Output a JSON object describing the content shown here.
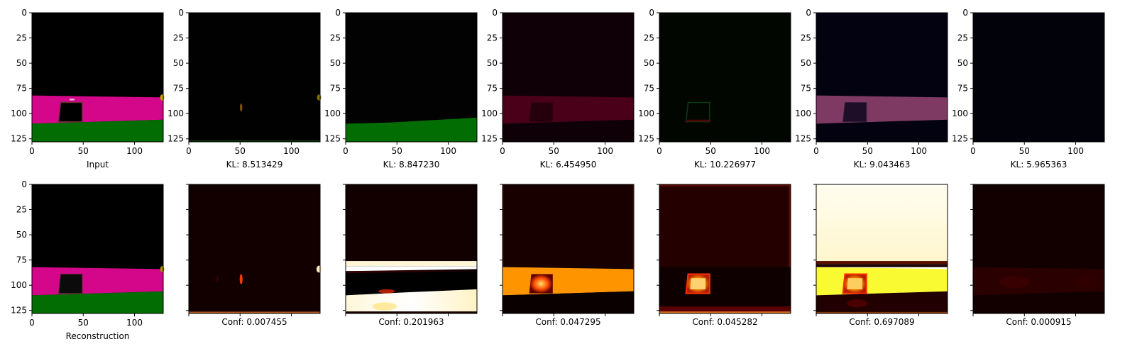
{
  "chart_data": {
    "type": "image-grid",
    "rows": 2,
    "columns": 7,
    "image_size": [
      128,
      128
    ],
    "axis_range": {
      "x": [
        0,
        128
      ],
      "y": [
        128,
        0
      ]
    },
    "x_ticks": [
      "0",
      "50",
      "100"
    ],
    "y_ticks": [
      "0",
      "25",
      "50",
      "75",
      "100",
      "125"
    ],
    "grid": false,
    "panels": [
      {
        "row": 0,
        "col": 0,
        "caption": "Input",
        "content": "input-scene",
        "show_x_labels": true,
        "show_y_labels": true
      },
      {
        "row": 0,
        "col": 1,
        "caption": "KL: 8.513429",
        "content": "latent-1",
        "show_x_labels": true,
        "show_y_labels": true
      },
      {
        "row": 0,
        "col": 2,
        "caption": "KL: 8.847230",
        "content": "latent-2",
        "show_x_labels": true,
        "show_y_labels": true
      },
      {
        "row": 0,
        "col": 3,
        "caption": "KL: 6.454950",
        "content": "latent-3",
        "show_x_labels": true,
        "show_y_labels": true
      },
      {
        "row": 0,
        "col": 4,
        "caption": "KL: 10.226977",
        "content": "latent-4",
        "show_x_labels": true,
        "show_y_labels": true
      },
      {
        "row": 0,
        "col": 5,
        "caption": "KL: 9.043463",
        "content": "latent-5",
        "show_x_labels": true,
        "show_y_labels": true
      },
      {
        "row": 0,
        "col": 6,
        "caption": "KL: 5.965363",
        "content": "latent-6",
        "show_x_labels": true,
        "show_y_labels": true
      },
      {
        "row": 1,
        "col": 0,
        "caption": "Reconstruction",
        "content": "reconstruction",
        "show_x_labels": true,
        "show_y_labels": true
      },
      {
        "row": 1,
        "col": 1,
        "caption": "Conf: 0.007455",
        "content": "conf-1",
        "show_x_labels": false,
        "show_y_labels": false
      },
      {
        "row": 1,
        "col": 2,
        "caption": "Conf: 0.201963",
        "content": "conf-2",
        "show_x_labels": false,
        "show_y_labels": false
      },
      {
        "row": 1,
        "col": 3,
        "caption": "Conf: 0.047295",
        "content": "conf-3",
        "show_x_labels": false,
        "show_y_labels": false
      },
      {
        "row": 1,
        "col": 4,
        "caption": "Conf: 0.045282",
        "content": "conf-4",
        "show_x_labels": false,
        "show_y_labels": false
      },
      {
        "row": 1,
        "col": 5,
        "caption": "Conf: 0.697089",
        "content": "conf-5",
        "show_x_labels": false,
        "show_y_labels": false
      },
      {
        "row": 1,
        "col": 6,
        "caption": "Conf: 0.000915",
        "content": "conf-6",
        "show_x_labels": false,
        "show_y_labels": false
      }
    ],
    "colors": {
      "magenta": "#d4068a",
      "green": "#026d02",
      "black": "#000000",
      "dark_red": "#120000",
      "orange": "#fe9500",
      "yellow": "#fafa32",
      "cream": "#fffbe6"
    }
  }
}
